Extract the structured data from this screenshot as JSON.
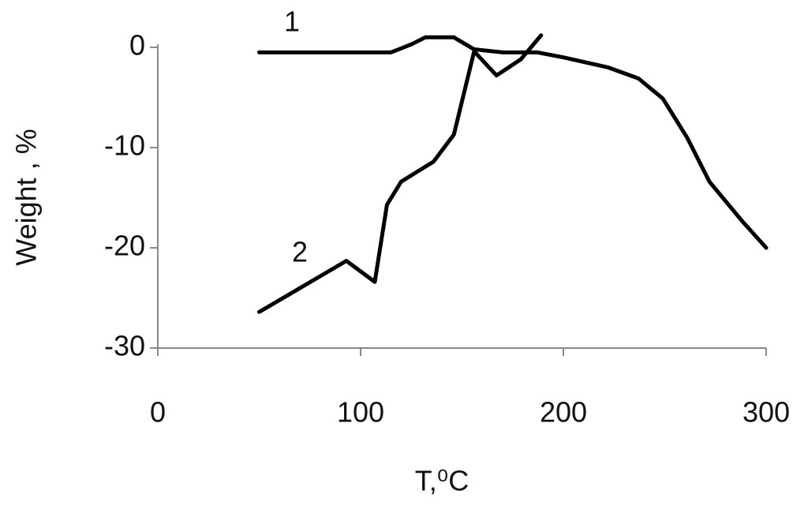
{
  "chart_data": {
    "type": "line",
    "xlabel": "T,⁰C",
    "ylabel": "Weight , %",
    "annotations": [
      "1",
      "2"
    ],
    "xlim": [
      0,
      300
    ],
    "xticks": [
      0,
      100,
      200,
      300
    ],
    "ylim": [
      -30,
      0
    ],
    "yticks": [
      0,
      -10,
      -20,
      -30
    ],
    "series": [
      {
        "name": "1",
        "color": "#000000",
        "x": [
          50,
          115,
          125,
          132,
          146,
          156,
          170,
          187,
          200,
          222,
          237,
          249,
          261,
          272,
          288,
          300
        ],
        "values": [
          -0.5,
          -0.5,
          0.3,
          1,
          1,
          -0.2,
          -0.5,
          -0.5,
          -1,
          -2,
          -3.1,
          -5.1,
          -9,
          -13.4,
          -17.3,
          -20
        ]
      },
      {
        "name": "2",
        "color": "#000000",
        "x": [
          50,
          93,
          107,
          113,
          120,
          136,
          146,
          156,
          167,
          179,
          189
        ],
        "values": [
          -26.4,
          -21.3,
          -23.4,
          -15.7,
          -13.4,
          -11.4,
          -8.7,
          -0.4,
          -2.8,
          -1.2,
          1.2
        ]
      }
    ]
  }
}
